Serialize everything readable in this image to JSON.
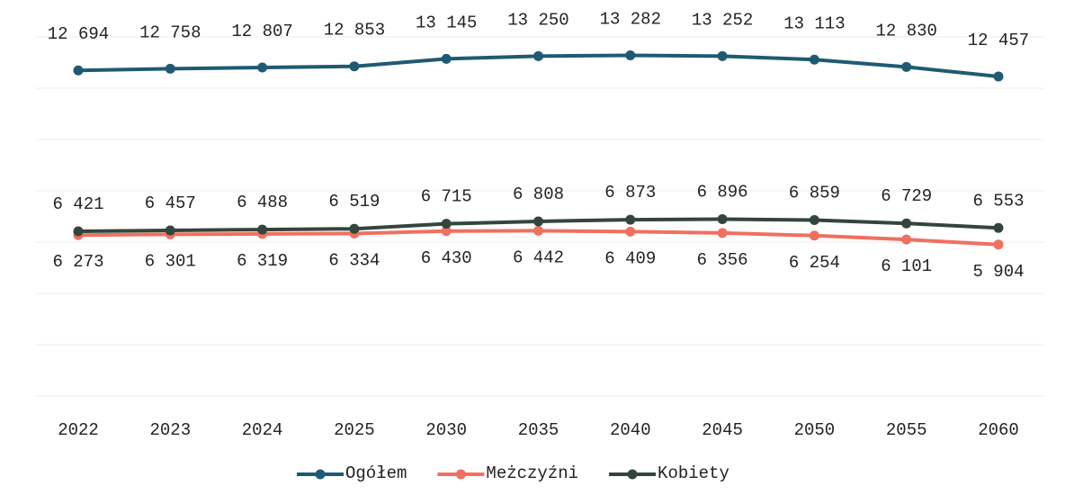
{
  "chart_data": {
    "type": "line",
    "categories": [
      "2022",
      "2023",
      "2024",
      "2025",
      "2030",
      "2035",
      "2040",
      "2045",
      "2050",
      "2055",
      "2060"
    ],
    "series": [
      {
        "name": "Ogółem",
        "color": "#1f5a73",
        "values": [
          12694,
          12758,
          12807,
          12853,
          13145,
          13250,
          13282,
          13252,
          13113,
          12830,
          12457
        ],
        "value_labels": [
          "12 694",
          "12 758",
          "12 807",
          "12 853",
          "13 145",
          "13 250",
          "13 282",
          "13 252",
          "13 113",
          "12 830",
          "12 457"
        ]
      },
      {
        "name": "Meżczyźni",
        "color": "#f07060",
        "values": [
          6273,
          6301,
          6319,
          6334,
          6430,
          6442,
          6409,
          6356,
          6254,
          6101,
          5904
        ],
        "value_labels": [
          "6 273",
          "6 301",
          "6 319",
          "6 334",
          "6 430",
          "6 442",
          "6 409",
          "6 356",
          "6 254",
          "6 101",
          "5 904"
        ]
      },
      {
        "name": "Kobiety",
        "color": "#34453c",
        "values": [
          6421,
          6457,
          6488,
          6519,
          6715,
          6808,
          6873,
          6896,
          6859,
          6729,
          6553
        ],
        "value_labels": [
          "6 421",
          "6 457",
          "6 488",
          "6 519",
          "6 715",
          "6 808",
          "6 873",
          "6 896",
          "6 859",
          "6 729",
          "6 553"
        ]
      }
    ],
    "ylim": [
      0,
      14000
    ],
    "yticks": [
      0,
      2000,
      4000,
      6000,
      8000,
      10000,
      12000,
      14000
    ],
    "grid": true
  }
}
